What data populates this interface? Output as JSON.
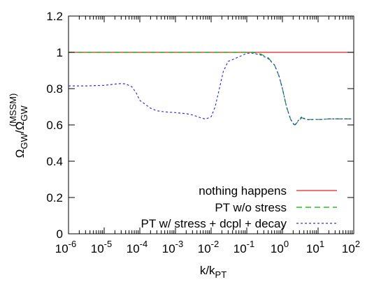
{
  "chart_data": {
    "type": "line",
    "xlabel": {
      "base": "k/k",
      "sub": "PT"
    },
    "ylabel": {
      "a": "Ω",
      "a_sub": "GW",
      "slash": "/",
      "b": "Ω",
      "b_sub": "GW",
      "b_sup": "(MSSM)"
    },
    "xscale": "log",
    "xlim": [
      1e-06,
      100
    ],
    "ylim": [
      0,
      1.2
    ],
    "grid": false,
    "legend_position": "bottom-right",
    "x_ticks": [
      {
        "base": "10",
        "exp": "-6"
      },
      {
        "base": "10",
        "exp": "-5"
      },
      {
        "base": "10",
        "exp": "-4"
      },
      {
        "base": "10",
        "exp": "-3"
      },
      {
        "base": "10",
        "exp": "-2"
      },
      {
        "base": "10",
        "exp": "-1"
      },
      {
        "base": "10",
        "exp": "0"
      },
      {
        "base": "10",
        "exp": "1"
      },
      {
        "base": "10",
        "exp": "2"
      }
    ],
    "y_ticks": [
      "0",
      "0.2",
      "0.4",
      "0.6",
      "0.8",
      "1",
      "1.2"
    ],
    "series": [
      {
        "name": "nothing happens",
        "color": "#e8201f",
        "dash": "solid",
        "x": [
          1e-06,
          100
        ],
        "y": [
          1.0,
          1.0
        ]
      },
      {
        "name": "PT w/o stress",
        "color": "#00b000",
        "dash": "long-dash",
        "x": [
          1e-06,
          0.001,
          0.01,
          0.05,
          0.1,
          0.15,
          0.25,
          0.4,
          0.6,
          0.8,
          1.0,
          1.3,
          1.7,
          2.2,
          2.8,
          3.5,
          4.5,
          6.0,
          8.0,
          12,
          20,
          40,
          100
        ],
        "y": [
          1.0,
          1.0,
          1.0,
          1.0,
          1.0,
          1.0,
          0.99,
          0.97,
          0.93,
          0.87,
          0.8,
          0.7,
          0.63,
          0.6,
          0.62,
          0.64,
          0.63,
          0.63,
          0.63,
          0.63,
          0.633,
          0.633,
          0.633
        ]
      },
      {
        "name": "PT w/ stress + dcpl + decay",
        "color": "#3030e0",
        "dash": "short-dash",
        "x": [
          1e-06,
          3e-06,
          1e-05,
          2e-05,
          3e-05,
          4e-05,
          6e-05,
          8e-05,
          0.0001,
          0.00015,
          0.0002,
          0.0003,
          0.0005,
          0.001,
          0.002,
          0.003,
          0.005,
          0.007,
          0.01,
          0.013,
          0.017,
          0.022,
          0.03,
          0.04,
          0.06,
          0.1,
          0.15,
          0.25,
          0.4,
          0.6,
          0.8,
          1.0,
          1.3,
          1.7,
          2.2,
          2.8,
          3.5,
          4.5,
          6.0,
          8.0,
          12,
          20,
          40,
          100
        ],
        "y": [
          0.815,
          0.815,
          0.818,
          0.825,
          0.828,
          0.826,
          0.81,
          0.775,
          0.735,
          0.71,
          0.692,
          0.678,
          0.672,
          0.668,
          0.662,
          0.655,
          0.64,
          0.632,
          0.645,
          0.7,
          0.8,
          0.895,
          0.95,
          0.96,
          0.975,
          0.995,
          0.995,
          0.985,
          0.965,
          0.93,
          0.87,
          0.8,
          0.7,
          0.63,
          0.595,
          0.625,
          0.645,
          0.63,
          0.628,
          0.63,
          0.63,
          0.633,
          0.633,
          0.633
        ]
      }
    ]
  }
}
